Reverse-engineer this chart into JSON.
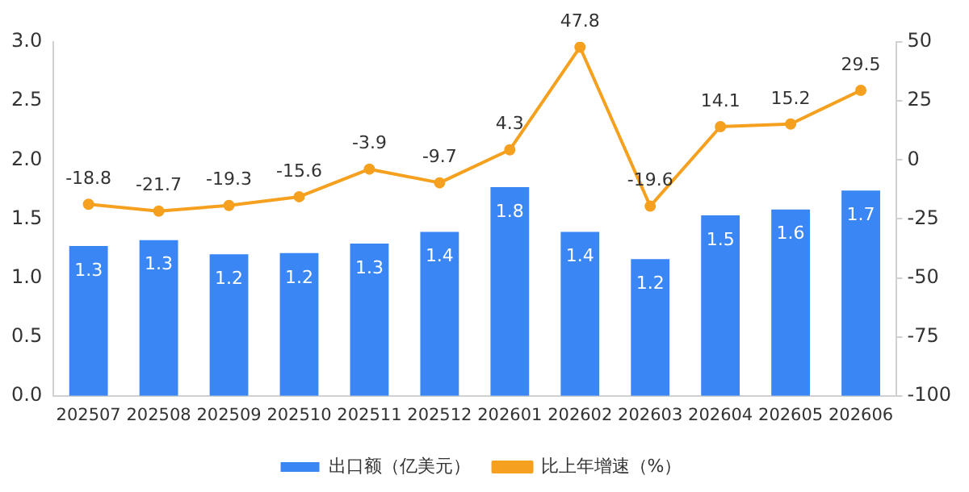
{
  "chart_data": {
    "type": "bar",
    "categories": [
      "202507",
      "202508",
      "202509",
      "202510",
      "202511",
      "202512",
      "202601",
      "202602",
      "202603",
      "202604",
      "202605",
      "202606"
    ],
    "series": [
      {
        "name": "出口额（亿美元）",
        "color": "#3a86f5",
        "values": [
          1.27,
          1.32,
          1.2,
          1.21,
          1.29,
          1.39,
          1.77,
          1.39,
          1.16,
          1.53,
          1.58,
          1.74
        ],
        "value_labels": [
          "1.3",
          "1.3",
          "1.2",
          "1.2",
          "1.3",
          "1.4",
          "1.8",
          "1.4",
          "1.2",
          "1.5",
          "1.6",
          "1.7"
        ]
      },
      {
        "name": "比上年增速（%）",
        "type": "line",
        "axis": "y2",
        "color": "#f5a01e",
        "marker": "circle",
        "values": [
          -18.8,
          -21.7,
          -19.3,
          -15.6,
          -3.9,
          -9.7,
          4.3,
          47.8,
          -19.6,
          14.1,
          15.2,
          29.5
        ],
        "value_labels": [
          "-18.8",
          "-21.7",
          "-19.3",
          "-15.6",
          "-3.9",
          "-9.7",
          "4.3",
          "47.8",
          "-19.6",
          "14.1",
          "15.2",
          "29.5"
        ]
      }
    ],
    "ylim": [
      0,
      3
    ],
    "yticks": [
      {
        "value": 0,
        "label": "0.0"
      },
      0.5,
      {
        "value": 1,
        "label": "1.0"
      },
      1.5,
      {
        "value": 2,
        "label": "2.0"
      },
      2.5,
      {
        "value": 3,
        "label": "3.0"
      }
    ],
    "y2lim": [
      -100,
      50
    ],
    "y2ticks": [
      -100,
      -75,
      -50,
      -25,
      0,
      25,
      50
    ],
    "grid": false,
    "legend": "bottom"
  }
}
